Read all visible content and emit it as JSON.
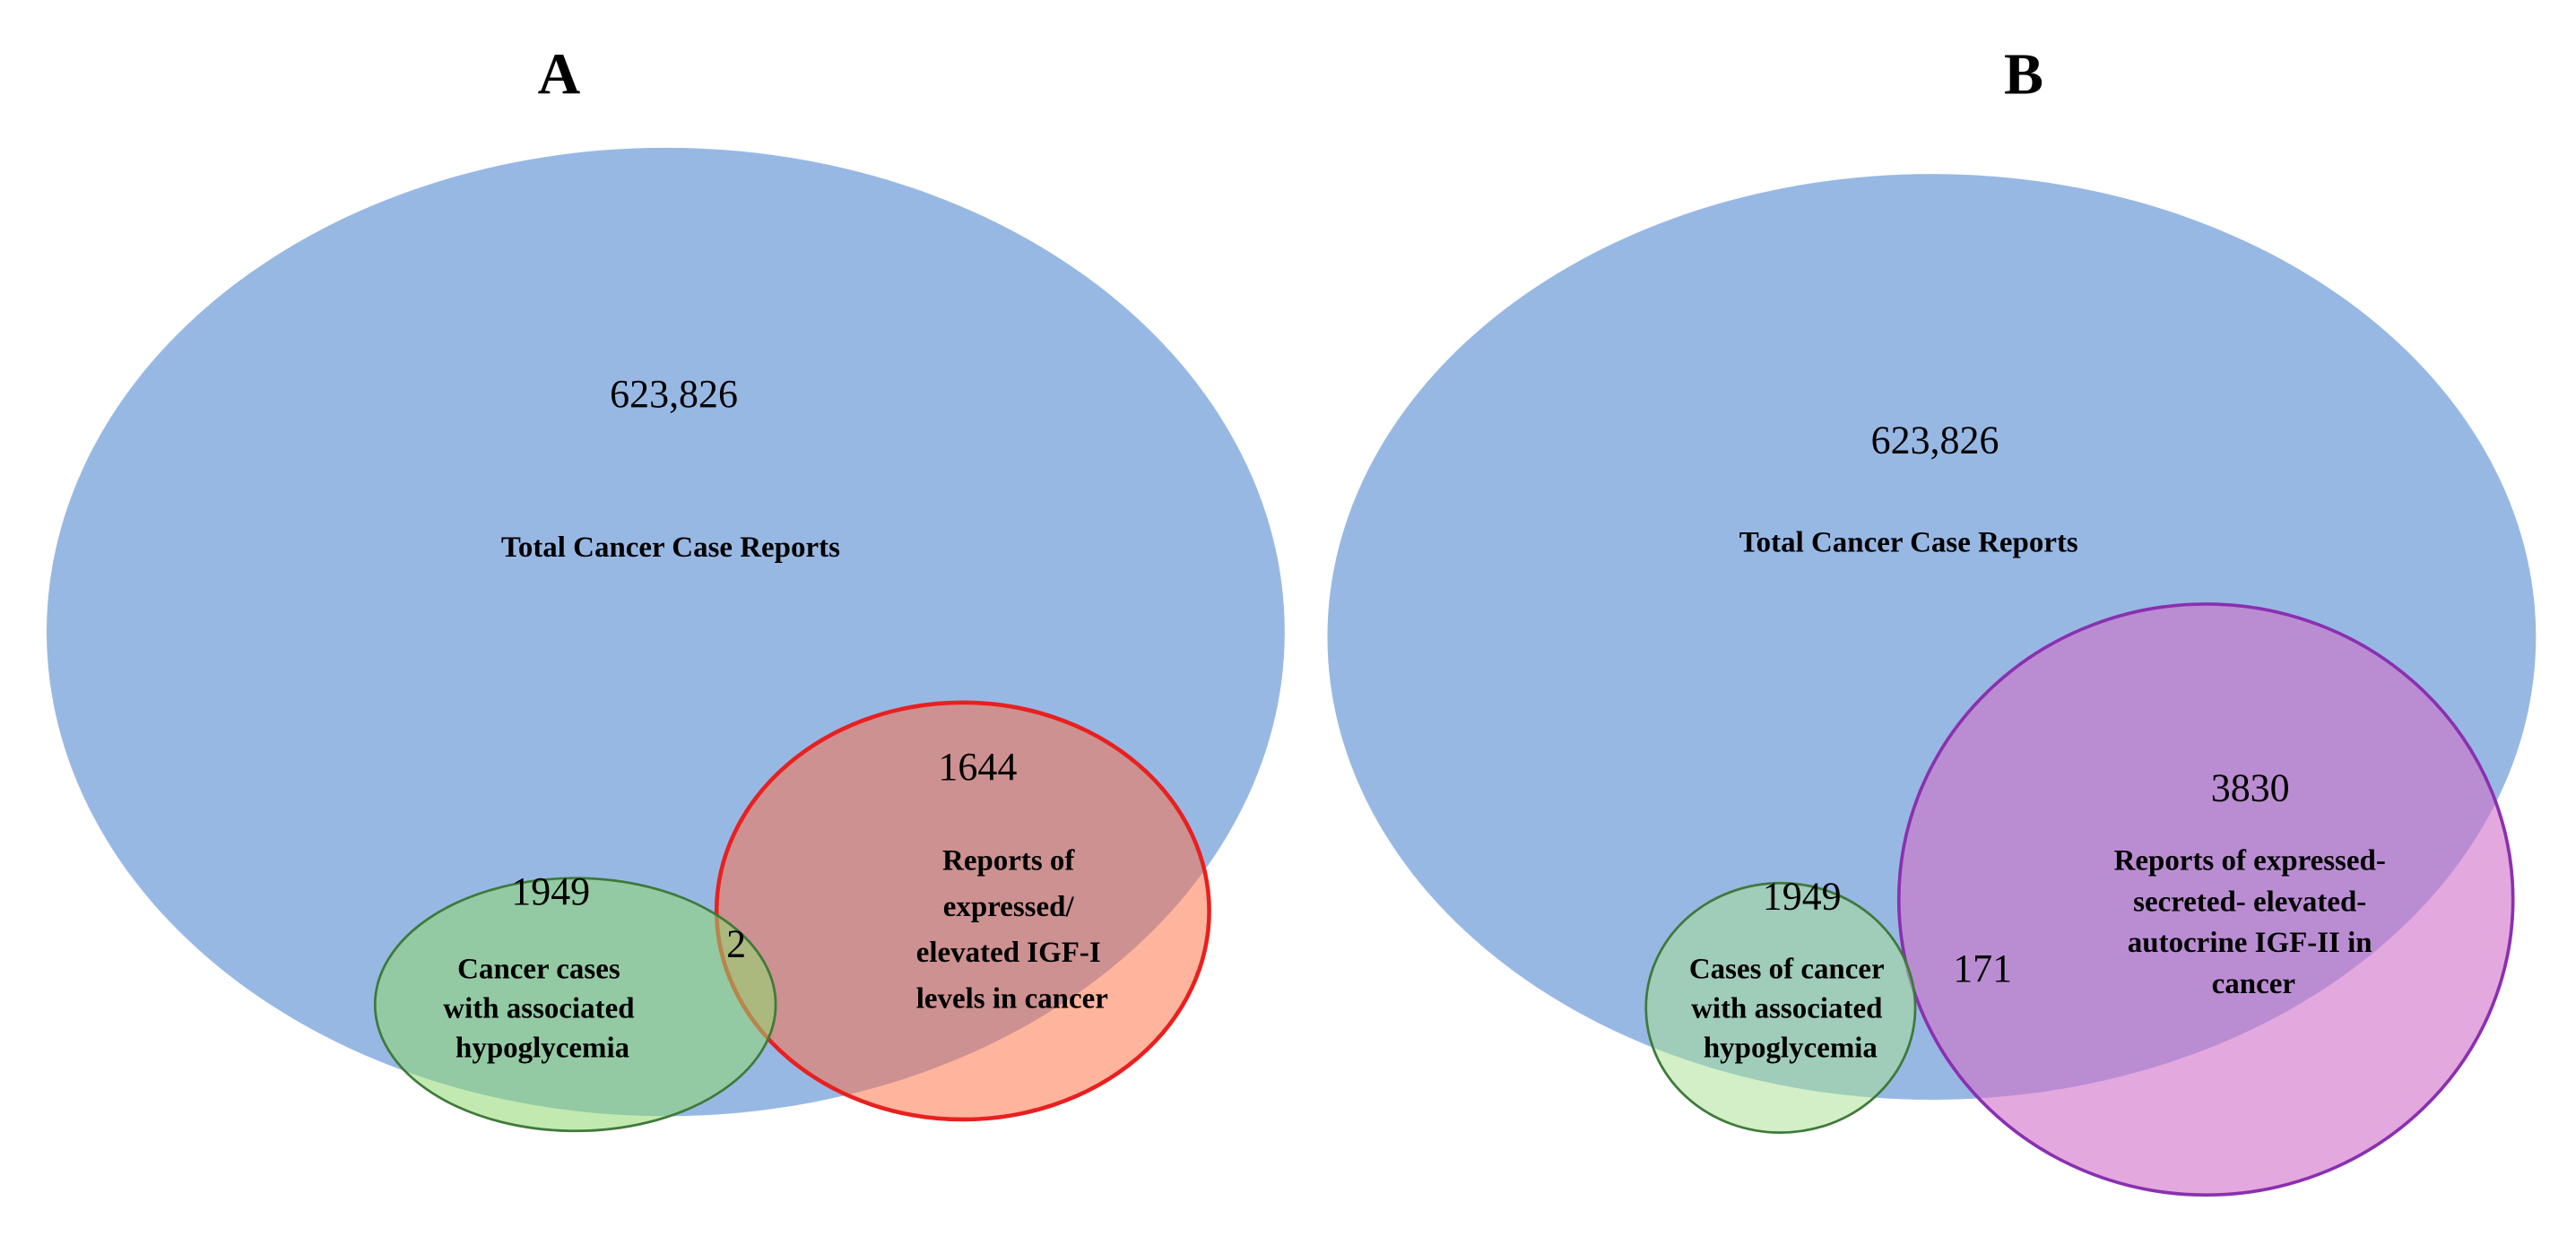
{
  "colors": {
    "total": "#98b8e4",
    "igf1": "#ff6a3c",
    "igf1_stroke": "#e82020",
    "hypo": "#90d870",
    "hypo_stroke": "#3e7a3a",
    "igf2": "#d070c8",
    "igf2_stroke": "#8a30b0"
  },
  "panel_a": {
    "title": "A",
    "total_count": "623,826",
    "total_label": "Total Cancer Case Reports",
    "igf_count": "1644",
    "igf_label": [
      "Reports of",
      "expressed/",
      "elevated IGF-I",
      "levels in cancer"
    ],
    "hypo_count": "1949",
    "hypo_label": [
      "Cancer cases",
      "with associated",
      "hypoglycemia"
    ],
    "overlap_count": "2"
  },
  "panel_b": {
    "title": "B",
    "total_count": "623,826",
    "total_label": "Total Cancer Case Reports",
    "igf_count": "3830",
    "igf_label": [
      "Reports of expressed-",
      "secreted- elevated-",
      "autocrine IGF-II in",
      "cancer"
    ],
    "hypo_count": "1949",
    "hypo_label": [
      "Cases of cancer",
      "with associated",
      "hypoglycemia"
    ],
    "overlap_count": "171"
  }
}
